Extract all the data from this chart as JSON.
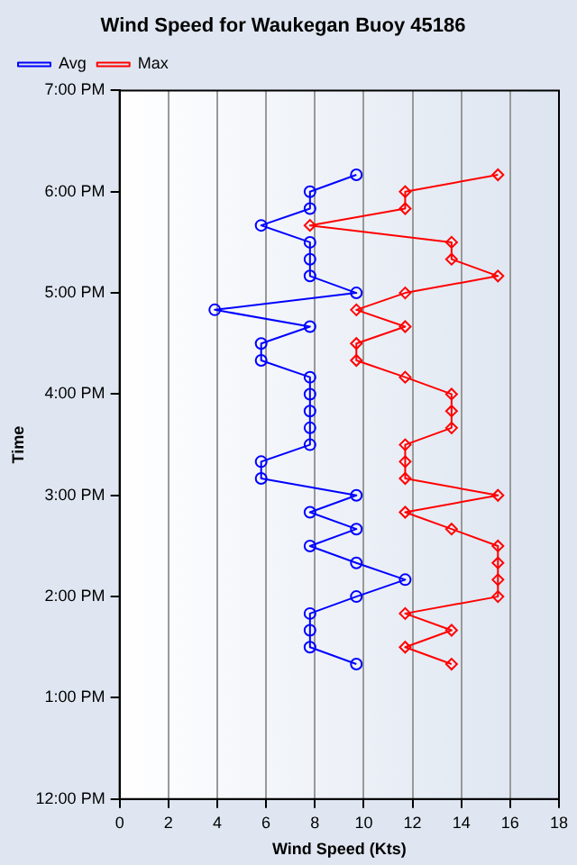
{
  "chart_data": {
    "type": "line",
    "title": "Wind Speed for Waukegan Buoy 45186",
    "xlabel": "Wind Speed (Kts)",
    "ylabel": "Time",
    "orientation": "horizontal",
    "x": [
      13.333,
      13.5,
      13.667,
      13.833,
      14,
      14.167,
      14.333,
      14.5,
      14.667,
      14.833,
      15,
      15.167,
      15.333,
      15.5,
      15.667,
      15.833,
      16,
      16.167,
      16.333,
      16.5,
      16.667,
      16.833,
      17,
      17.167,
      17.333,
      17.5,
      17.667,
      17.833,
      18,
      18.167
    ],
    "series": [
      {
        "name": "Avg",
        "color": "#0000ff",
        "marker": "circle",
        "values": [
          9.7,
          7.8,
          7.8,
          7.8,
          9.7,
          11.7,
          9.7,
          7.8,
          9.7,
          7.8,
          9.7,
          5.8,
          5.8,
          7.8,
          7.8,
          7.8,
          7.8,
          7.8,
          5.8,
          5.8,
          7.8,
          3.9,
          9.7,
          7.8,
          7.8,
          7.8,
          5.8,
          7.8,
          7.8,
          9.7
        ]
      },
      {
        "name": "Max",
        "color": "#ff0000",
        "marker": "diamond",
        "values": [
          13.6,
          11.7,
          13.6,
          11.7,
          15.5,
          15.5,
          15.5,
          15.5,
          13.6,
          11.7,
          15.5,
          11.7,
          11.7,
          11.7,
          13.6,
          13.6,
          13.6,
          11.7,
          9.7,
          9.7,
          11.7,
          9.7,
          11.7,
          15.5,
          13.6,
          13.6,
          7.8,
          11.7,
          11.7,
          15.5
        ]
      }
    ],
    "xlim": [
      0,
      18
    ],
    "xticks": [
      0,
      2,
      4,
      6,
      8,
      10,
      12,
      14,
      16,
      18
    ],
    "ylim": [
      12,
      19
    ],
    "yticks": [
      {
        "value": 12,
        "label": "12:00 PM"
      },
      {
        "value": 13,
        "label": "1:00 PM"
      },
      {
        "value": 14,
        "label": "2:00 PM"
      },
      {
        "value": 15,
        "label": "3:00 PM"
      },
      {
        "value": 16,
        "label": "4:00 PM"
      },
      {
        "value": 17,
        "label": "5:00 PM"
      },
      {
        "value": 18,
        "label": "6:00 PM"
      },
      {
        "value": 19,
        "label": "7:00 PM"
      }
    ],
    "grid": "x",
    "legend": "top left"
  }
}
